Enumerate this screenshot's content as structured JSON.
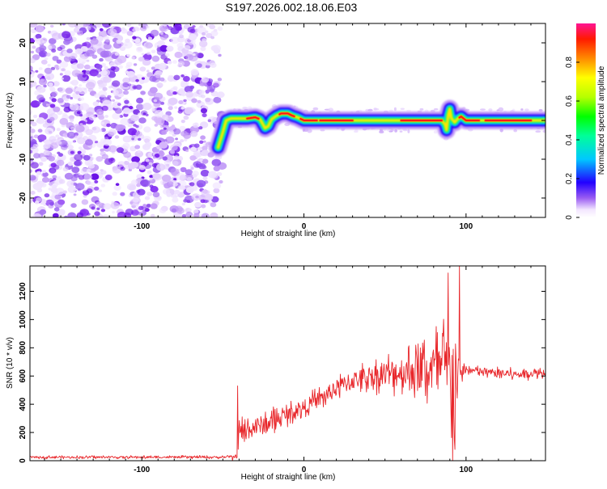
{
  "title": "S197.2026.002.18.06.E03",
  "colors": {
    "signal": "#e8262a",
    "scatter": "#7a1ff0",
    "axis": "#000000"
  },
  "chart_data": [
    {
      "type": "heatmap",
      "name": "spectrogram",
      "xlabel": "Height of straight line (km)",
      "ylabel": "Frequency (Hz)",
      "xlim": [
        -169,
        149
      ],
      "ylim": [
        -25,
        25
      ],
      "xticks": [
        -100,
        0,
        100
      ],
      "yticks": [
        -20,
        -10,
        0,
        10,
        20
      ],
      "colorbar": {
        "label": "Normalized spectral amplitude",
        "range": [
          0,
          1
        ],
        "ticks": [
          0,
          0.2,
          0.4,
          0.6,
          0.8
        ]
      },
      "noise_region_x": [
        -169,
        -53
      ],
      "signal_track": {
        "x": [
          -53,
          -50,
          -48,
          -45,
          -40,
          -35,
          -30,
          -27,
          -24,
          -22,
          -20,
          -17,
          -14,
          -10,
          -7,
          -4,
          0,
          10,
          20,
          30,
          40,
          50,
          60,
          70,
          80,
          85,
          87,
          88,
          89,
          90,
          91,
          93,
          95,
          97,
          100,
          110,
          120,
          130,
          140,
          149
        ],
        "freq": [
          -7,
          -3,
          0,
          0.5,
          0.5,
          0.5,
          0.8,
          0.3,
          -2,
          -1.5,
          0.3,
          1.2,
          1.8,
          1.8,
          1.2,
          0.8,
          0,
          0,
          0,
          0,
          0,
          0,
          0,
          0,
          0,
          0,
          -1,
          -2.5,
          1.5,
          3,
          0.5,
          -0.5,
          0.5,
          1,
          0,
          0,
          0,
          0,
          0,
          0
        ]
      },
      "peak_segments_x": [
        [
          -35,
          -28
        ],
        [
          -15,
          -6
        ],
        [
          -2,
          8
        ],
        [
          10,
          30
        ],
        [
          60,
          85
        ],
        [
          96,
          108
        ],
        [
          112,
          140
        ]
      ]
    },
    {
      "type": "line",
      "name": "snr",
      "xlabel": "Height of straight line (km)",
      "ylabel": "SNR (10 * v/v)",
      "xlim": [
        -169,
        149
      ],
      "ylim": [
        0,
        1380
      ],
      "xticks": [
        -100,
        0,
        100
      ],
      "yticks": [
        0,
        200,
        400,
        600,
        800,
        1000,
        1200
      ],
      "envelope": {
        "x": [
          -169,
          -50,
          -42,
          -41,
          -40,
          -38,
          -35,
          -30,
          -25,
          -20,
          -10,
          0,
          10,
          20,
          30,
          40,
          50,
          60,
          70,
          80,
          85,
          88,
          90,
          92,
          94,
          95,
          96,
          97,
          98,
          100,
          110,
          120,
          130,
          140,
          149
        ],
        "base": [
          25,
          25,
          30,
          150,
          200,
          200,
          215,
          240,
          255,
          275,
          330,
          380,
          440,
          510,
          570,
          600,
          615,
          630,
          640,
          650,
          640,
          640,
          620,
          600,
          600,
          600,
          610,
          620,
          640,
          640,
          630,
          620,
          610,
          620,
          625
        ],
        "amplitude": [
          12,
          12,
          12,
          300,
          200,
          130,
          120,
          120,
          120,
          110,
          90,
          90,
          100,
          110,
          110,
          130,
          160,
          200,
          260,
          340,
          380,
          440,
          500,
          800,
          550,
          300,
          130,
          100,
          70,
          60,
          50,
          50,
          50,
          50,
          50
        ]
      },
      "notable_points": [
        {
          "x": -41,
          "y": 530
        },
        {
          "x": -44,
          "y": 0
        },
        {
          "x": 89,
          "y": 1330
        },
        {
          "x": 93,
          "y": 80
        },
        {
          "x": 96,
          "y": 1380
        }
      ]
    }
  ]
}
